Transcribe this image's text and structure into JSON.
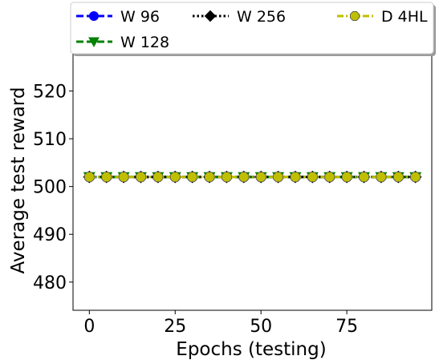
{
  "chart_data": {
    "type": "line",
    "title": "",
    "xlabel": "Epochs (testing)",
    "ylabel": "Average test reward",
    "xlim": [
      -4.75,
      99.75
    ],
    "ylim": [
      474.1,
      528.3
    ],
    "xticks": [
      0,
      25,
      50,
      75
    ],
    "yticks": [
      480,
      490,
      500,
      510,
      520
    ],
    "x": [
      0,
      5,
      10,
      15,
      20,
      25,
      30,
      35,
      40,
      45,
      50,
      55,
      60,
      65,
      70,
      75,
      80,
      85,
      90,
      95
    ],
    "series": [
      {
        "name": "W 96",
        "color": "#0000ff",
        "marker": "circle",
        "linestyle": "dashed",
        "values": [
          502,
          502,
          502,
          502,
          502,
          502,
          502,
          502,
          502,
          502,
          502,
          502,
          502,
          502,
          502,
          502,
          502,
          502,
          502,
          502
        ]
      },
      {
        "name": "W 128",
        "color": "#008000",
        "marker": "triangle-down",
        "linestyle": "dashed",
        "values": [
          502,
          502,
          502,
          502,
          502,
          502,
          502,
          502,
          502,
          502,
          502,
          502,
          502,
          502,
          502,
          502,
          502,
          502,
          502,
          502
        ]
      },
      {
        "name": "W 256",
        "color": "#000000",
        "marker": "diamond",
        "linestyle": "dotted",
        "values": [
          502,
          502,
          502,
          502,
          502,
          502,
          502,
          502,
          502,
          502,
          502,
          502,
          502,
          502,
          502,
          502,
          502,
          502,
          502,
          502
        ]
      },
      {
        "name": "D 4HL",
        "color": "#bfbf00",
        "marker": "octagon",
        "linestyle": "dashdot",
        "values": [
          502,
          502,
          502,
          502,
          502,
          502,
          502,
          502,
          502,
          502,
          502,
          502,
          502,
          502,
          502,
          502,
          502,
          502,
          502,
          502
        ]
      }
    ],
    "legend": {
      "position": "top-center, above plot",
      "columns": 3
    }
  }
}
